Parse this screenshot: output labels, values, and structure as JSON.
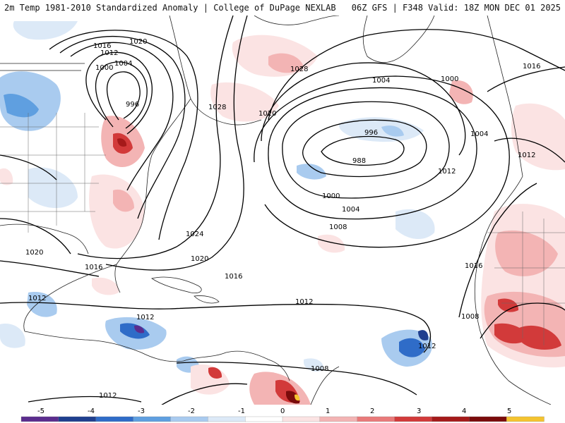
{
  "header": {
    "title_left": "2m Temp 1981-2010 Standardized Anomaly | College of DuPage NEXLAB",
    "title_right": "06Z GFS | F348 Valid: 18Z MON DEC 01 2025"
  },
  "map": {
    "isobar_labels": [
      "1016",
      "1012",
      "1020",
      "1004",
      "1000",
      "996",
      "1028",
      "1028",
      "1020",
      "1004",
      "1000",
      "1016",
      "996",
      "988",
      "1004",
      "1012",
      "1000",
      "1004",
      "1008",
      "1024",
      "1020",
      "1020",
      "1016",
      "1016",
      "1012",
      "1012",
      "1012",
      "1008",
      "1012",
      "1008",
      "1012",
      "1016",
      "1012"
    ]
  },
  "colorbar": {
    "tick_labels": [
      "-5",
      "-4",
      "-3",
      "-2",
      "-1",
      "0",
      "1",
      "2",
      "3",
      "4",
      "5"
    ],
    "colors": [
      "#5b2d8e",
      "#1f3f8f",
      "#2f6cc8",
      "#5f9fe0",
      "#a9cbef",
      "#dce9f7",
      "#ffffff",
      "#fbe3e3",
      "#f3b4b4",
      "#e97a7a",
      "#d23a3a",
      "#a51a1a",
      "#7a0b0b",
      "#f4c430"
    ]
  }
}
